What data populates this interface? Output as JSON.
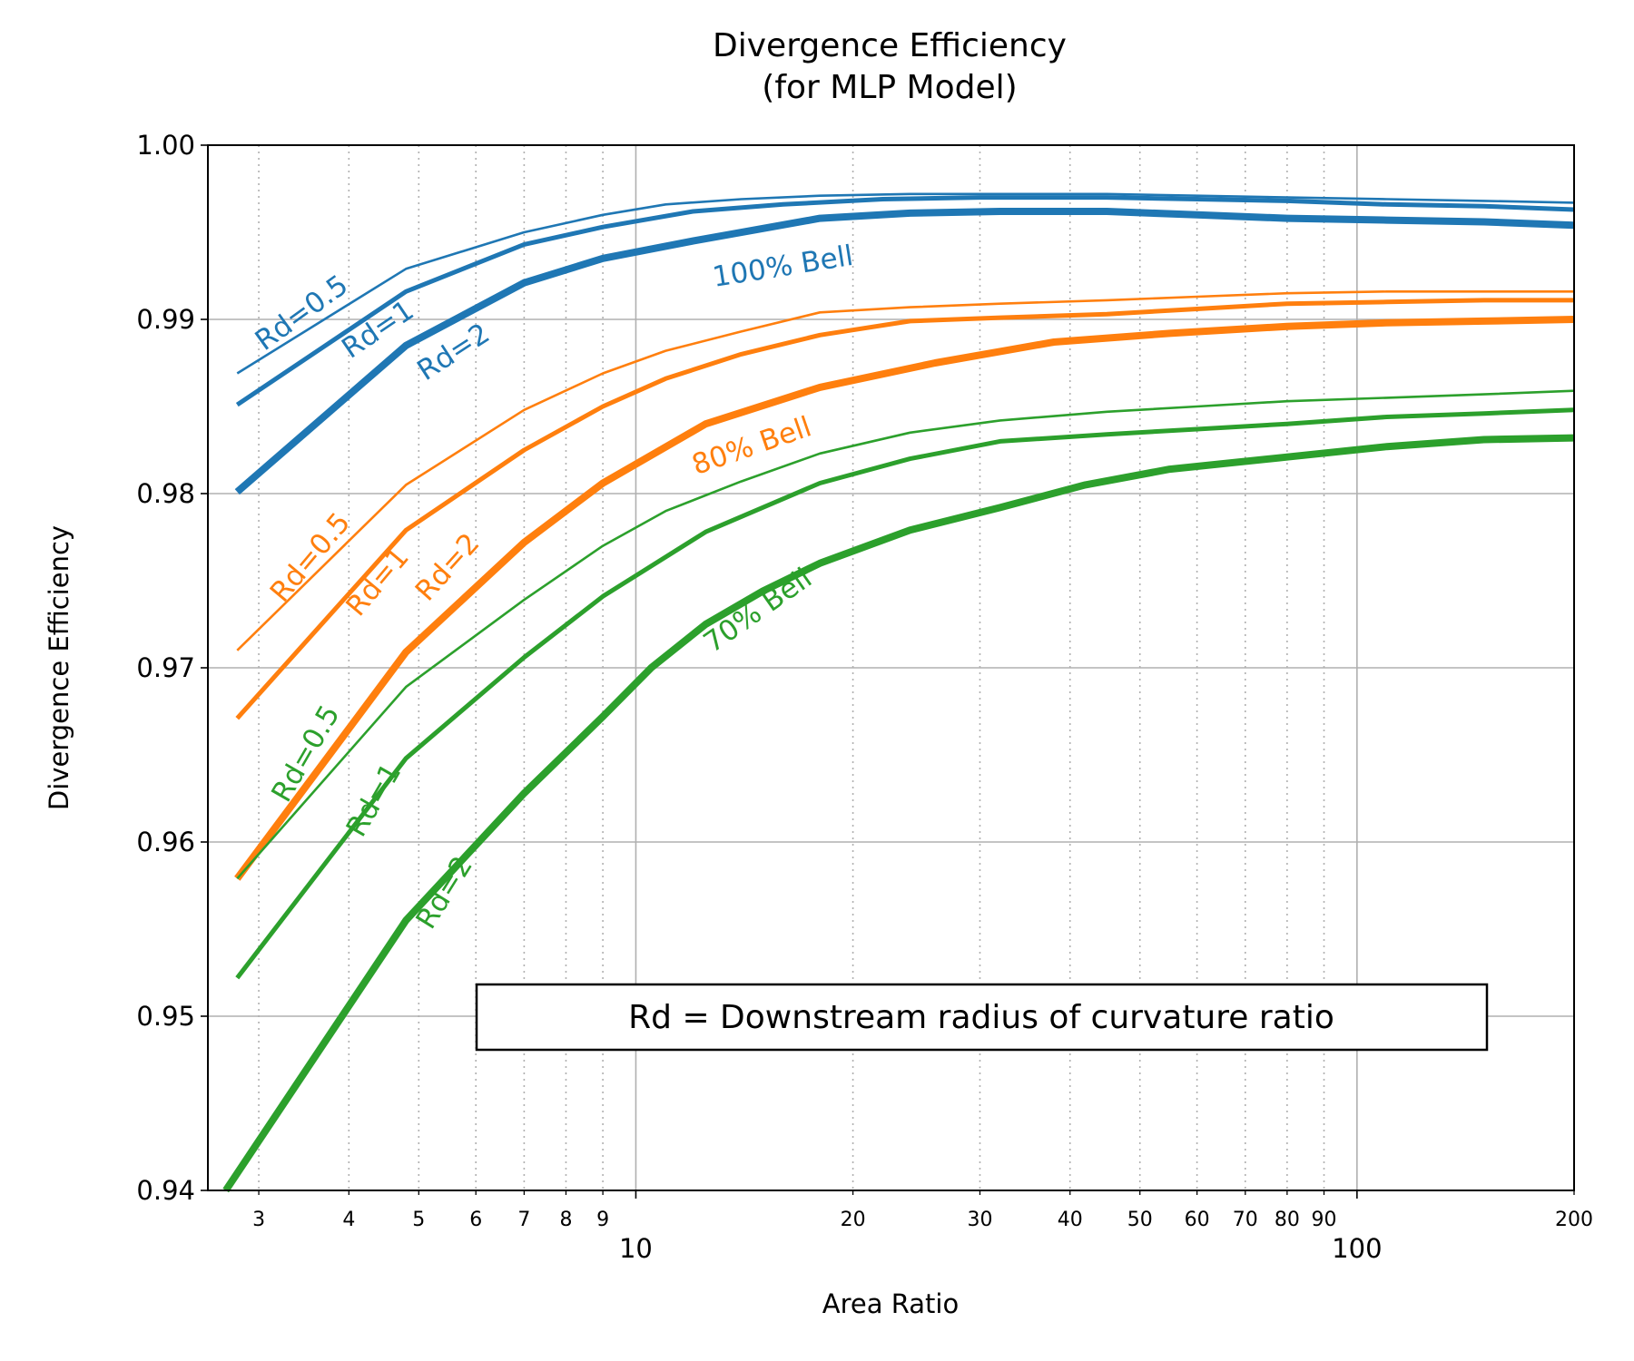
{
  "chart_data": {
    "type": "line",
    "title": [
      "Divergence Efficiency",
      "(for MLP Model)"
    ],
    "xlabel": "Area Ratio",
    "ylabel": "Divergence Efficiency",
    "xscale": "log",
    "xlim": [
      2.55,
      200
    ],
    "ylim": [
      0.94,
      1.0
    ],
    "grid": "on",
    "y_ticks": [
      "0.94",
      "0.95",
      "0.96",
      "0.97",
      "0.98",
      "0.99",
      "1.00"
    ],
    "x_ticks_major": [
      {
        "value": 10,
        "label": "10"
      },
      {
        "value": 100,
        "label": "100"
      }
    ],
    "x_ticks_minor": [
      {
        "value": 3,
        "label": "3"
      },
      {
        "value": 4,
        "label": "4"
      },
      {
        "value": 5,
        "label": "5"
      },
      {
        "value": 6,
        "label": "6"
      },
      {
        "value": 7,
        "label": "7"
      },
      {
        "value": 8,
        "label": "8"
      },
      {
        "value": 9,
        "label": "9"
      },
      {
        "value": 20,
        "label": "20"
      },
      {
        "value": 30,
        "label": "30"
      },
      {
        "value": 40,
        "label": "40"
      },
      {
        "value": 50,
        "label": "50"
      },
      {
        "value": 60,
        "label": "60"
      },
      {
        "value": 70,
        "label": "70"
      },
      {
        "value": 80,
        "label": "80"
      },
      {
        "value": 90,
        "label": "90"
      },
      {
        "value": 200,
        "label": "200"
      }
    ],
    "annotation_box": "Rd = Downstream radius of curvature ratio",
    "colors": {
      "blue": "#1f77b4",
      "orange": "#ff7f0e",
      "green": "#2ca02c"
    },
    "series": [
      {
        "group": "100% Bell",
        "rd": "Rd=0.5",
        "color": "#1f77b4",
        "x": [
          2.8,
          4.8,
          7.0,
          9.0,
          11.0,
          14.0,
          18.0,
          24.0,
          32.0,
          45.0,
          60.0,
          80.0,
          110.0,
          150.0,
          200.0
        ],
        "y": [
          0.9869,
          0.9929,
          0.995,
          0.996,
          0.9966,
          0.9969,
          0.9971,
          0.9972,
          0.9972,
          0.9972,
          0.9971,
          0.997,
          0.9969,
          0.9968,
          0.9967
        ]
      },
      {
        "group": "100% Bell",
        "rd": "Rd=1",
        "color": "#1f77b4",
        "x": [
          2.8,
          4.8,
          7.0,
          9.0,
          12.0,
          16.0,
          22.0,
          30.0,
          45.0,
          60.0,
          80.0,
          110.0,
          150.0,
          200.0
        ],
        "y": [
          0.9851,
          0.9916,
          0.9943,
          0.9953,
          0.9962,
          0.9966,
          0.9969,
          0.997,
          0.997,
          0.9969,
          0.9968,
          0.9966,
          0.9965,
          0.9963
        ]
      },
      {
        "group": "100% Bell",
        "rd": "Rd=2",
        "color": "#1f77b4",
        "x": [
          2.8,
          4.8,
          7.0,
          9.0,
          12.0,
          18.0,
          24.0,
          32.0,
          45.0,
          60.0,
          80.0,
          110.0,
          150.0,
          200.0
        ],
        "y": [
          0.9801,
          0.9885,
          0.9921,
          0.9935,
          0.9945,
          0.9958,
          0.9961,
          0.9962,
          0.9962,
          0.996,
          0.9958,
          0.9957,
          0.9956,
          0.9954
        ]
      },
      {
        "group": "80% Bell",
        "rd": "Rd=0.5",
        "color": "#ff7f0e",
        "x": [
          2.8,
          4.8,
          7.0,
          9.0,
          11.0,
          14.0,
          18.0,
          24.0,
          32.0,
          45.0,
          60.0,
          80.0,
          110.0,
          150.0,
          200.0
        ],
        "y": [
          0.971,
          0.9805,
          0.9848,
          0.9869,
          0.9882,
          0.9893,
          0.9904,
          0.9907,
          0.9909,
          0.9911,
          0.9913,
          0.9915,
          0.9916,
          0.9916,
          0.9916
        ]
      },
      {
        "group": "80% Bell",
        "rd": "Rd=1",
        "color": "#ff7f0e",
        "x": [
          2.8,
          4.8,
          7.0,
          9.0,
          11.0,
          14.0,
          18.0,
          24.0,
          32.0,
          45.0,
          60.0,
          80.0,
          110.0,
          150.0,
          200.0
        ],
        "y": [
          0.9671,
          0.9779,
          0.9825,
          0.985,
          0.9866,
          0.988,
          0.9891,
          0.9899,
          0.9901,
          0.9903,
          0.9906,
          0.9909,
          0.991,
          0.9911,
          0.9911
        ]
      },
      {
        "group": "80% Bell",
        "rd": "Rd=2",
        "color": "#ff7f0e",
        "x": [
          2.8,
          4.8,
          7.0,
          9.0,
          12.5,
          18.0,
          26.0,
          38.0,
          55.0,
          80.0,
          110.0,
          150.0,
          200.0
        ],
        "y": [
          0.9579,
          0.9709,
          0.9772,
          0.9806,
          0.984,
          0.9861,
          0.9875,
          0.9887,
          0.9892,
          0.9896,
          0.9898,
          0.9899,
          0.99
        ]
      },
      {
        "group": "70% Bell",
        "rd": "Rd=0.5",
        "color": "#2ca02c",
        "x": [
          2.8,
          4.8,
          7.0,
          9.0,
          11.0,
          14.0,
          18.0,
          24.0,
          32.0,
          45.0,
          60.0,
          80.0,
          110.0,
          150.0,
          200.0
        ],
        "y": [
          0.9579,
          0.9689,
          0.9739,
          0.977,
          0.979,
          0.9807,
          0.9823,
          0.9835,
          0.9842,
          0.9847,
          0.985,
          0.9853,
          0.9855,
          0.9857,
          0.9859
        ]
      },
      {
        "group": "70% Bell",
        "rd": "Rd=1",
        "color": "#2ca02c",
        "x": [
          2.8,
          4.8,
          7.0,
          9.0,
          12.5,
          18.0,
          24.0,
          32.0,
          45.0,
          60.0,
          80.0,
          110.0,
          150.0,
          200.0
        ],
        "y": [
          0.9522,
          0.9648,
          0.9706,
          0.9741,
          0.9778,
          0.9806,
          0.982,
          0.983,
          0.9834,
          0.9837,
          0.984,
          0.9844,
          0.9846,
          0.9848
        ]
      },
      {
        "group": "70% Bell",
        "rd": "Rd=2",
        "color": "#2ca02c",
        "x": [
          2.7,
          4.8,
          7.0,
          9.0,
          10.5,
          12.5,
          15.0,
          18.0,
          24.0,
          32.0,
          42.0,
          55.0,
          80.0,
          110.0,
          150.0,
          200.0
        ],
        "y": [
          0.94,
          0.9555,
          0.9628,
          0.9672,
          0.97,
          0.9725,
          0.9744,
          0.976,
          0.9779,
          0.9792,
          0.9805,
          0.9814,
          0.9821,
          0.9827,
          0.9831,
          0.9832
        ]
      }
    ],
    "text_labels": [
      {
        "text": "Rd=0.5",
        "color": "#1f77b4",
        "x": 3.45,
        "y": 0.9903,
        "rotation": -36
      },
      {
        "text": "Rd=1",
        "color": "#1f77b4",
        "x": 4.4,
        "y": 0.98935,
        "rotation": -34
      },
      {
        "text": "Rd=2",
        "color": "#1f77b4",
        "x": 5.6,
        "y": 0.98805,
        "rotation": -33
      },
      {
        "text": "100% Bell",
        "color": "#1f77b4",
        "x": 16.0,
        "y": 0.99295,
        "rotation": -9
      },
      {
        "text": "Rd=0.5",
        "color": "#ff7f0e",
        "x": 3.55,
        "y": 0.97628,
        "rotation": -50
      },
      {
        "text": "Rd=1",
        "color": "#ff7f0e",
        "x": 4.4,
        "y": 0.97488,
        "rotation": -50
      },
      {
        "text": "Rd=2",
        "color": "#ff7f0e",
        "x": 5.5,
        "y": 0.97572,
        "rotation": -48
      },
      {
        "text": "80% Bell",
        "color": "#ff7f0e",
        "x": 14.5,
        "y": 0.98265,
        "rotation": -19
      },
      {
        "text": "Rd=0.5",
        "color": "#2ca02c",
        "x": 3.5,
        "y": 0.96503,
        "rotation": -60
      },
      {
        "text": "Rd=1",
        "color": "#2ca02c",
        "x": 4.35,
        "y": 0.96237,
        "rotation": -60
      },
      {
        "text": "Rd=2",
        "color": "#2ca02c",
        "x": 5.45,
        "y": 0.95705,
        "rotation": -58
      },
      {
        "text": "70% Bell",
        "color": "#2ca02c",
        "x": 14.8,
        "y": 0.97322,
        "rotation": -35
      }
    ]
  }
}
